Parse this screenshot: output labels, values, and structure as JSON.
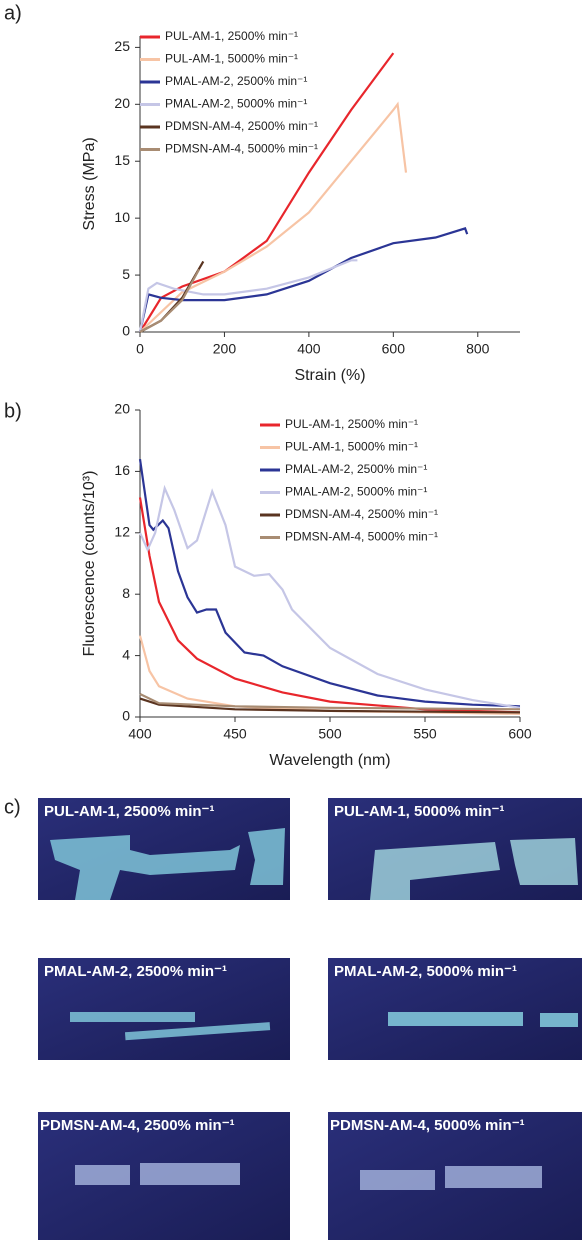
{
  "chart_data": [
    {
      "type": "line",
      "panel_label": "a)",
      "x_label": "Strain (%)",
      "y_label": "Stress (MPa)",
      "xlim": [
        0,
        900
      ],
      "ylim": [
        0,
        26
      ],
      "xticks": [
        0,
        200,
        400,
        600,
        800
      ],
      "yticks": [
        0,
        5,
        10,
        15,
        20,
        25
      ],
      "legend": "top-left",
      "series": [
        {
          "name": "PUL-AM-1, 2500% min⁻¹",
          "color": "#e8262c",
          "x": [
            0,
            50,
            100,
            200,
            300,
            400,
            500,
            600
          ],
          "values": [
            0,
            3,
            4,
            5.3,
            8,
            14,
            19.5,
            24.5
          ]
        },
        {
          "name": "PUL-AM-1, 5000% min⁻¹",
          "color": "#f7c4a5",
          "x": [
            0,
            100,
            200,
            300,
            400,
            500,
            600,
            610,
            630
          ],
          "values": [
            0,
            3.5,
            5.3,
            7.5,
            10.5,
            15,
            19.5,
            20,
            14
          ]
        },
        {
          "name": "PMAL-AM-2, 2500% min⁻¹",
          "color": "#2b3595",
          "x": [
            0,
            20,
            50,
            100,
            200,
            300,
            400,
            500,
            600,
            700,
            770,
            775
          ],
          "values": [
            0,
            3.3,
            3,
            2.8,
            2.8,
            3.3,
            4.5,
            6.5,
            7.8,
            8.3,
            9.1,
            8.6
          ]
        },
        {
          "name": "PMAL-AM-2, 5000% min⁻¹",
          "color": "#c5c6e6",
          "x": [
            0,
            20,
            40,
            80,
            150,
            200,
            300,
            400,
            500,
            515
          ],
          "values": [
            0,
            3.8,
            4.3,
            3.8,
            3.3,
            3.3,
            3.8,
            4.8,
            6.3,
            6.3
          ]
        },
        {
          "name": "PDMSN-AM-4, 2500% min⁻¹",
          "color": "#5a3420",
          "x": [
            0,
            50,
            100,
            150
          ],
          "values": [
            0,
            1,
            3,
            6.2
          ]
        },
        {
          "name": "PDMSN-AM-4, 5000% min⁻¹",
          "color": "#a88c73",
          "x": [
            0,
            50,
            100,
            140
          ],
          "values": [
            0,
            1,
            2.8,
            5.5
          ]
        }
      ]
    },
    {
      "type": "line",
      "panel_label": "b)",
      "x_label": "Wavelength (nm)",
      "y_label": "Fluorescence (counts/10³)",
      "xlim": [
        400,
        600
      ],
      "ylim": [
        0,
        20
      ],
      "xticks": [
        400,
        450,
        500,
        550,
        600
      ],
      "yticks": [
        0,
        4,
        8,
        12,
        16,
        20
      ],
      "legend": "top-right",
      "series": [
        {
          "name": "PUL-AM-1, 2500% min⁻¹",
          "color": "#e8262c",
          "x": [
            400,
            405,
            410,
            420,
            430,
            450,
            475,
            500,
            550,
            600
          ],
          "values": [
            14.3,
            10.5,
            7.5,
            5,
            3.8,
            2.5,
            1.6,
            1,
            0.5,
            0.3
          ]
        },
        {
          "name": "PUL-AM-1, 5000% min⁻¹",
          "color": "#f7c4a5",
          "x": [
            400,
            405,
            410,
            425,
            450,
            500,
            600
          ],
          "values": [
            5.3,
            3,
            2,
            1.2,
            0.7,
            0.4,
            0.2
          ]
        },
        {
          "name": "PMAL-AM-2, 2500% min⁻¹",
          "color": "#2b3595",
          "x": [
            400,
            405,
            407,
            412,
            415,
            420,
            425,
            430,
            435,
            440,
            445,
            455,
            465,
            475,
            500,
            525,
            550,
            575,
            600
          ],
          "values": [
            16.8,
            12.5,
            12.2,
            12.8,
            12.3,
            9.5,
            7.8,
            6.8,
            7,
            7,
            5.5,
            4.2,
            4,
            3.3,
            2.2,
            1.4,
            1,
            0.8,
            0.7
          ]
        },
        {
          "name": "PMAL-AM-2, 5000% min⁻¹",
          "color": "#c5c6e6",
          "x": [
            400,
            404,
            408,
            413,
            418,
            425,
            430,
            438,
            445,
            450,
            460,
            468,
            475,
            480,
            500,
            525,
            550,
            575,
            600
          ],
          "values": [
            12,
            10.9,
            12,
            14.9,
            13.5,
            11,
            11.5,
            14.7,
            12.5,
            9.8,
            9.2,
            9.3,
            8.3,
            7,
            4.5,
            2.8,
            1.8,
            1.1,
            0.6
          ]
        },
        {
          "name": "PDMSN-AM-4, 2500% min⁻¹",
          "color": "#5a3420",
          "x": [
            400,
            410,
            450,
            500,
            600
          ],
          "values": [
            1.2,
            0.8,
            0.5,
            0.4,
            0.3
          ]
        },
        {
          "name": "PDMSN-AM-4, 5000% min⁻¹",
          "color": "#a88c73",
          "x": [
            400,
            410,
            450,
            500,
            600
          ],
          "values": [
            1.5,
            0.9,
            0.7,
            0.6,
            0.5
          ]
        }
      ]
    }
  ],
  "photos": {
    "panel_label": "c)",
    "captions": [
      "PUL-AM-1, 2500% min⁻¹",
      "PUL-AM-1, 5000% min⁻¹",
      "PMAL-AM-2, 2500% min⁻¹",
      "PMAL-AM-2, 5000% min⁻¹",
      "PDMSN-AM-4, 2500% min⁻¹",
      "PDMSN-AM-4, 5000% min⁻¹"
    ]
  }
}
